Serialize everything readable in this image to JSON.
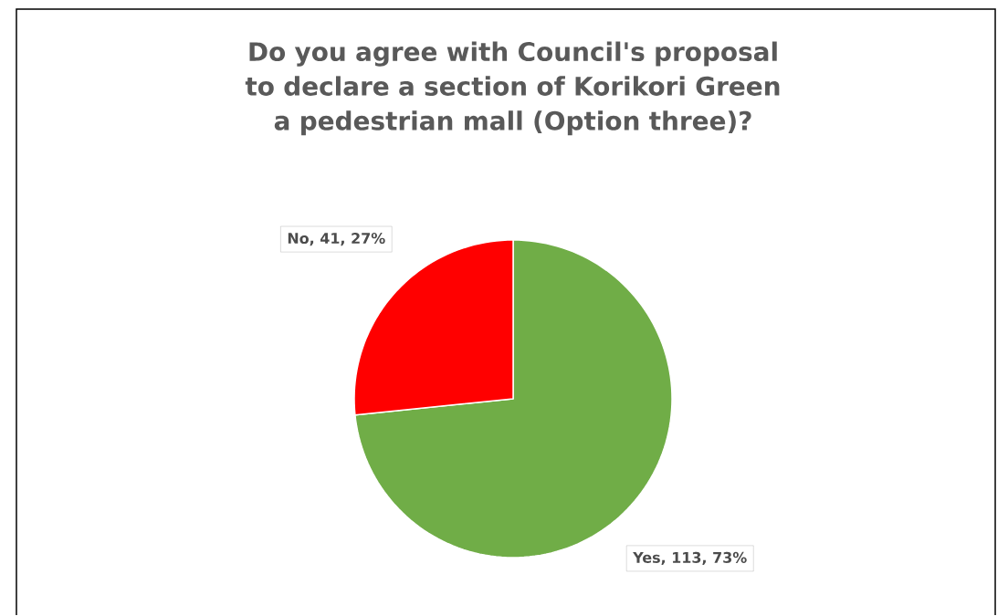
{
  "chart_data": {
    "type": "pie",
    "title": "Do you agree with Council's proposal to declare a section of Korikori Green a pedestrian mall (Option three)?",
    "categories": [
      "Yes",
      "No"
    ],
    "values": [
      113,
      41
    ],
    "colors": [
      "#70ad47",
      "#ff0000"
    ],
    "value_labels": [
      ", 113, 73%",
      ", 41, 27%"
    ]
  }
}
